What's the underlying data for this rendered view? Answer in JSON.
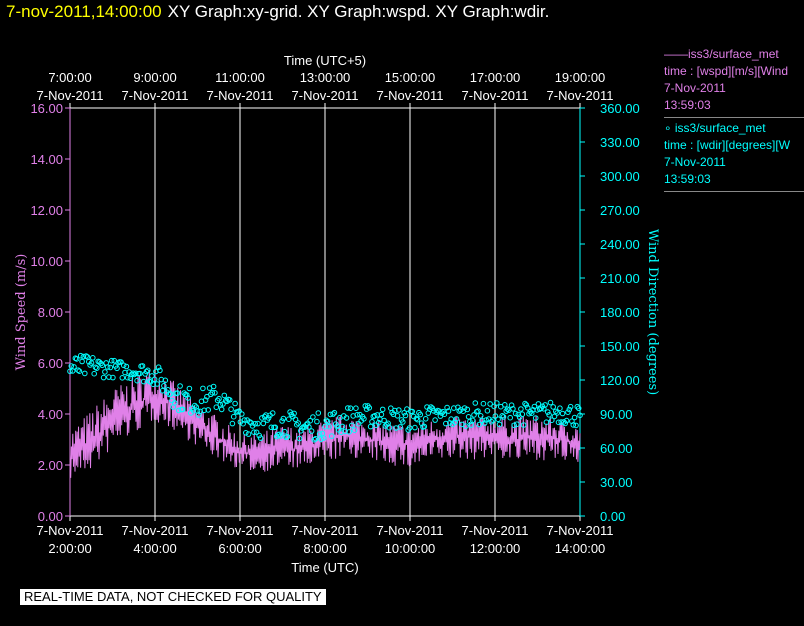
{
  "header": {
    "timestamp": "7-nov-2011,14:00:00",
    "title": "XY Graph:xy-grid.  XY Graph:wspd.  XY Graph:wdir."
  },
  "legend": [
    {
      "marker": "——",
      "name": "iss3/surface_met",
      "field": "time : [wspd][m/s][Wind",
      "date": "7-Nov-2011",
      "time": "13:59:03",
      "color": "#e080e8"
    },
    {
      "marker": "∘",
      "name": "iss3/surface_met",
      "field": "time : [wdir][degrees][W",
      "date": "7-Nov-2011",
      "time": "13:59:03",
      "color": "#00ffff"
    }
  ],
  "footer": "REAL-TIME DATA, NOT CHECKED FOR QUALITY",
  "colors": {
    "wspd": "#e080e8",
    "wdir": "#00ffff",
    "grid": "#ffffff",
    "timestamp": "#ffff00"
  },
  "chart_data": {
    "type": "line",
    "x_top_label": "Time (UTC+5)",
    "x_top_ticks": [
      {
        "time": "7:00:00",
        "date": "7-Nov-2011"
      },
      {
        "time": "9:00:00",
        "date": "7-Nov-2011"
      },
      {
        "time": "11:00:00",
        "date": "7-Nov-2011"
      },
      {
        "time": "13:00:00",
        "date": "7-Nov-2011"
      },
      {
        "time": "15:00:00",
        "date": "7-Nov-2011"
      },
      {
        "time": "17:00:00",
        "date": "7-Nov-2011"
      },
      {
        "time": "19:00:00",
        "date": "7-Nov-2011"
      }
    ],
    "x_bottom_label": "Time (UTC)",
    "x_bottom_ticks": [
      {
        "date": "7-Nov-2011",
        "time": "2:00:00"
      },
      {
        "date": "7-Nov-2011",
        "time": "4:00:00"
      },
      {
        "date": "7-Nov-2011",
        "time": "6:00:00"
      },
      {
        "date": "7-Nov-2011",
        "time": "8:00:00"
      },
      {
        "date": "7-Nov-2011",
        "time": "10:00:00"
      },
      {
        "date": "7-Nov-2011",
        "time": "12:00:00"
      },
      {
        "date": "7-Nov-2011",
        "time": "14:00:00"
      }
    ],
    "xlim_hours_utc": [
      2,
      14
    ],
    "y_left_label": "Wind Speed (m/s)",
    "y_left_ticks": [
      "0.00",
      "2.00",
      "4.00",
      "6.00",
      "8.00",
      "10.00",
      "12.00",
      "14.00",
      "16.00"
    ],
    "ylim_left": [
      0,
      16
    ],
    "y_right_label": "Wind Direction (degrees)",
    "y_right_ticks": [
      "0.00",
      "30.00",
      "60.00",
      "90.00",
      "120.00",
      "150.00",
      "180.00",
      "210.00",
      "240.00",
      "270.00",
      "300.00",
      "330.00",
      "360.00"
    ],
    "ylim_right": [
      0,
      360
    ],
    "grid_vertical": true,
    "series": [
      {
        "name": "iss3/surface_met",
        "field": "wspd",
        "kind": "line",
        "axis": "left",
        "x_utc_hours": [
          2.0,
          2.5,
          3.0,
          3.5,
          4.0,
          4.5,
          5.0,
          5.5,
          6.0,
          6.5,
          7.0,
          7.5,
          8.0,
          8.5,
          9.0,
          9.5,
          10.0,
          10.5,
          11.0,
          11.5,
          12.0,
          12.5,
          13.0,
          13.5,
          14.0
        ],
        "values": [
          2.4,
          2.8,
          3.8,
          4.3,
          4.8,
          4.2,
          3.6,
          3.0,
          2.5,
          2.4,
          2.7,
          2.6,
          3.0,
          3.2,
          3.0,
          2.9,
          2.8,
          3.0,
          3.1,
          3.1,
          3.2,
          3.0,
          3.1,
          3.0,
          2.8
        ],
        "values_high": [
          3.4,
          4.2,
          5.0,
          5.5,
          6.0,
          5.2,
          4.4,
          3.9,
          3.2,
          3.3,
          3.6,
          3.5,
          3.8,
          4.0,
          3.8,
          3.7,
          3.6,
          3.8,
          3.9,
          3.9,
          4.0,
          3.9,
          4.0,
          3.8,
          3.6
        ],
        "values_low": [
          1.4,
          1.8,
          2.6,
          3.2,
          3.7,
          3.3,
          2.7,
          2.2,
          1.8,
          1.7,
          1.9,
          1.8,
          2.1,
          2.3,
          2.2,
          2.0,
          1.8,
          2.1,
          2.2,
          2.2,
          2.3,
          2.1,
          2.2,
          2.1,
          2.0
        ]
      },
      {
        "name": "iss3/surface_met",
        "field": "wdir",
        "kind": "scatter",
        "axis": "right",
        "x_utc_hours": [
          2.0,
          2.5,
          3.0,
          3.5,
          4.0,
          4.5,
          5.0,
          5.5,
          6.0,
          6.5,
          7.0,
          7.5,
          8.0,
          8.5,
          9.0,
          9.5,
          10.0,
          10.5,
          11.0,
          11.5,
          12.0,
          12.5,
          13.0,
          13.5,
          14.0
        ],
        "values": [
          130,
          132,
          130,
          128,
          125,
          105,
          100,
          105,
          85,
          80,
          82,
          78,
          80,
          85,
          88,
          87,
          85,
          88,
          88,
          90,
          90,
          90,
          90,
          92,
          88
        ],
        "spread": [
          12,
          10,
          8,
          8,
          10,
          12,
          12,
          12,
          10,
          12,
          12,
          12,
          12,
          12,
          10,
          10,
          10,
          10,
          10,
          10,
          10,
          10,
          10,
          10,
          10
        ]
      }
    ]
  }
}
